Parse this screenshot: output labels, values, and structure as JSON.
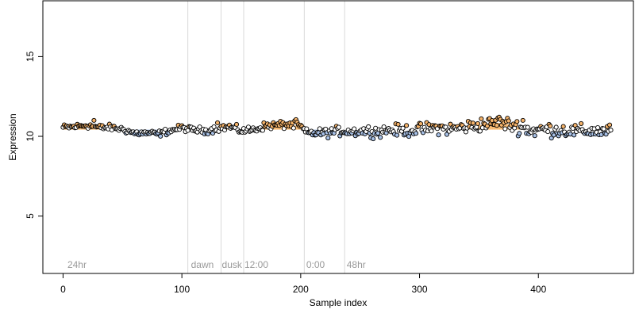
{
  "chart_data": {
    "type": "scatter",
    "title": "",
    "xlabel": "Sample index",
    "ylabel": "Expression",
    "xlim": [
      -17,
      480
    ],
    "ylim": [
      1.4,
      18.5
    ],
    "x_ticks": [
      0,
      100,
      200,
      300,
      400
    ],
    "y_ticks": [
      5,
      10,
      15
    ],
    "grid": false,
    "legend": "none",
    "n_samples": 462,
    "colors": {
      "point_edge": "#000000",
      "point_high": "#f5b36a",
      "point_low": "#a7c0e6",
      "point_mid": "#ffffff",
      "ribbon_high": "#f5a64a",
      "ribbon_low": "#8aaad8",
      "vertical_line": "#d9d9d9",
      "phase_label": "#9a9a9a"
    },
    "phase_lines": [
      105,
      133,
      152,
      203,
      237
    ],
    "phase_labels": [
      {
        "x": 3,
        "label": "24hr"
      },
      {
        "x": 107,
        "label": "dawn"
      },
      {
        "x": 133,
        "label": "dusk"
      },
      {
        "x": 152,
        "label": "12:00"
      },
      {
        "x": 204,
        "label": "0:00"
      },
      {
        "x": 238,
        "label": "48hr"
      }
    ],
    "trend_knots": [
      [
        0,
        10.55
      ],
      [
        10,
        10.6
      ],
      [
        20,
        10.7
      ],
      [
        30,
        10.55
      ],
      [
        40,
        10.55
      ],
      [
        50,
        10.45
      ],
      [
        60,
        10.2
      ],
      [
        70,
        10.2
      ],
      [
        80,
        10.15
      ],
      [
        90,
        10.35
      ],
      [
        100,
        10.55
      ],
      [
        105,
        10.45
      ],
      [
        110,
        10.4
      ],
      [
        120,
        10.35
      ],
      [
        130,
        10.5
      ],
      [
        140,
        10.6
      ],
      [
        150,
        10.35
      ],
      [
        160,
        10.4
      ],
      [
        170,
        10.65
      ],
      [
        180,
        10.7
      ],
      [
        190,
        10.75
      ],
      [
        200,
        10.6
      ],
      [
        205,
        10.2
      ],
      [
        215,
        10.2
      ],
      [
        225,
        10.25
      ],
      [
        235,
        10.35
      ],
      [
        245,
        10.3
      ],
      [
        255,
        10.35
      ],
      [
        265,
        10.3
      ],
      [
        275,
        10.4
      ],
      [
        285,
        10.35
      ],
      [
        295,
        10.4
      ],
      [
        305,
        10.45
      ],
      [
        315,
        10.55
      ],
      [
        325,
        10.45
      ],
      [
        335,
        10.55
      ],
      [
        345,
        10.65
      ],
      [
        355,
        10.75
      ],
      [
        365,
        10.85
      ],
      [
        375,
        10.75
      ],
      [
        385,
        10.55
      ],
      [
        395,
        10.35
      ],
      [
        405,
        10.45
      ],
      [
        415,
        10.4
      ],
      [
        425,
        10.35
      ],
      [
        435,
        10.3
      ],
      [
        445,
        10.35
      ],
      [
        455,
        10.3
      ],
      [
        461,
        10.35
      ]
    ],
    "noise_amplitude": [
      [
        0,
        0.12
      ],
      [
        100,
        0.12
      ],
      [
        200,
        0.16
      ],
      [
        300,
        0.24
      ],
      [
        400,
        0.28
      ],
      [
        461,
        0.25
      ]
    ],
    "outliers": [
      {
        "x": 26,
        "y": 11.0
      },
      {
        "x": 130,
        "y": 10.85
      },
      {
        "x": 196,
        "y": 11.05
      },
      {
        "x": 352,
        "y": 11.1
      },
      {
        "x": 367,
        "y": 11.2
      },
      {
        "x": 387,
        "y": 11.0
      }
    ]
  }
}
